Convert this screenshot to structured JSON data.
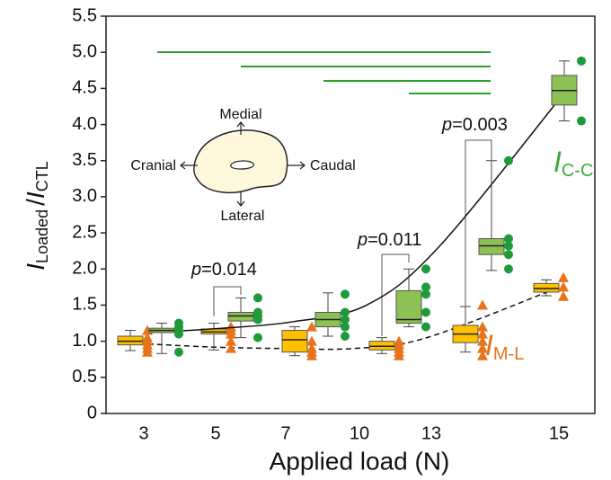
{
  "chart_data": {
    "type": "box",
    "x_axis_label": "Applied load (N)",
    "y_axis_label": {
      "symbol": "I",
      "sub": "Loaded",
      "slash": "/",
      "symbol2": "I",
      "sub2": "CTL"
    },
    "categories": [
      "3",
      "5",
      "7",
      "10",
      "13",
      "15"
    ],
    "ylim": [
      0,
      5.5
    ],
    "yticks": [
      0,
      0.5,
      {
        "value": 1,
        "label": "1.0"
      },
      1.5,
      {
        "value": 2,
        "label": "2.0"
      },
      2.5,
      {
        "value": 3,
        "label": "3.0"
      },
      3.5,
      {
        "value": 4,
        "label": "4.0"
      },
      4.5,
      {
        "value": 5,
        "label": "5.0"
      },
      5.5
    ],
    "series": [
      {
        "symbol": "I",
        "name": "M-L",
        "color": "#ffc000",
        "point_color": "#e8731a",
        "label_color": "#e8731a",
        "marker": "triangle",
        "fit_dash": true,
        "whisker_low": [
          0.87,
          0.88,
          0.8,
          0.83,
          0.85,
          1.63
        ],
        "q1": [
          0.95,
          1.1,
          0.85,
          0.88,
          0.98,
          1.68
        ],
        "median": [
          1.0,
          1.13,
          1.02,
          0.93,
          1.1,
          1.73
        ],
        "q3": [
          1.07,
          1.17,
          1.15,
          1.0,
          1.22,
          1.8
        ],
        "whisker_high": [
          1.15,
          1.25,
          1.2,
          1.05,
          1.48,
          1.85
        ],
        "points": [
          [
            1.15,
            1.05,
            1.0,
            0.95,
            0.9,
            0.85
          ],
          [
            1.2,
            1.15,
            1.1,
            1.0,
            0.9
          ],
          [
            1.2,
            1.0,
            0.9,
            0.85,
            0.8
          ],
          [
            1.0,
            0.95,
            0.9,
            0.85,
            0.8
          ],
          [
            1.5,
            1.2,
            1.1,
            1.0,
            0.9,
            0.8
          ],
          [
            1.88,
            1.75,
            1.62
          ]
        ],
        "fit": [
          0.97,
          0.92,
          0.9,
          0.9,
          1.05,
          1.72
        ]
      },
      {
        "symbol": "I",
        "name": "C-C",
        "color": "#8dc153",
        "point_color": "#1e9a3a",
        "label_color": "#3aa93a",
        "marker": "circle",
        "fit_dash": false,
        "whisker_low": [
          0.83,
          1.05,
          1.07,
          1.2,
          1.98,
          4.05
        ],
        "q1": [
          1.12,
          1.28,
          1.2,
          1.25,
          2.2,
          4.27
        ],
        "median": [
          1.15,
          1.35,
          1.3,
          1.3,
          2.32,
          4.47
        ],
        "q3": [
          1.18,
          1.4,
          1.4,
          1.7,
          2.42,
          4.68
        ],
        "whisker_high": [
          1.25,
          1.6,
          1.67,
          2.0,
          3.5,
          4.88
        ],
        "points": [
          [
            1.25,
            1.2,
            1.15,
            1.1,
            0.85
          ],
          [
            1.6,
            1.4,
            1.35,
            1.3,
            1.05
          ],
          [
            1.65,
            1.4,
            1.3,
            1.2,
            1.07
          ],
          [
            2.0,
            1.75,
            1.65,
            1.4,
            1.2
          ],
          [
            3.5,
            2.42,
            2.32,
            2.2,
            2.0
          ],
          [
            4.88,
            4.05
          ]
        ],
        "fit": [
          1.12,
          1.18,
          1.27,
          1.5,
          2.3,
          4.47
        ]
      }
    ],
    "annotations": [
      {
        "symbol": "p",
        "text": "=0.014"
      },
      {
        "symbol": "p",
        "text": "=0.011"
      },
      {
        "symbol": "p",
        "text": "=0.003"
      }
    ],
    "inset_labels": {
      "medial": "Medial",
      "cranial": "Cranial",
      "caudal": "Caudal",
      "lateral": "Lateral"
    }
  }
}
